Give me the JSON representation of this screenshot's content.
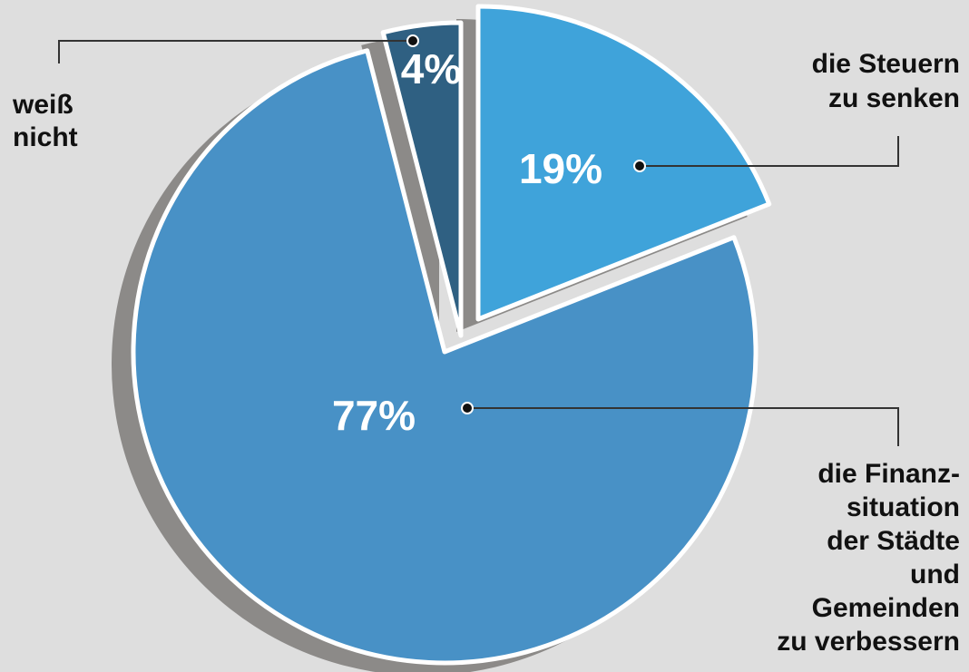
{
  "chart_data": {
    "type": "pie",
    "categories": [
      [
        "die Steuern",
        "zu senken"
      ],
      [
        "die Finanz-",
        "situation",
        "der Städte",
        "und",
        "Gemeinden",
        "zu verbessern"
      ],
      [
        "weiß",
        "nicht"
      ]
    ],
    "values": [
      19,
      77,
      4
    ],
    "value_labels": [
      "19%",
      "77%",
      "4%"
    ],
    "colors": [
      "#3fa3da",
      "#4891c6",
      "#2f6082"
    ],
    "start_angle": 0,
    "clockwise": true
  }
}
